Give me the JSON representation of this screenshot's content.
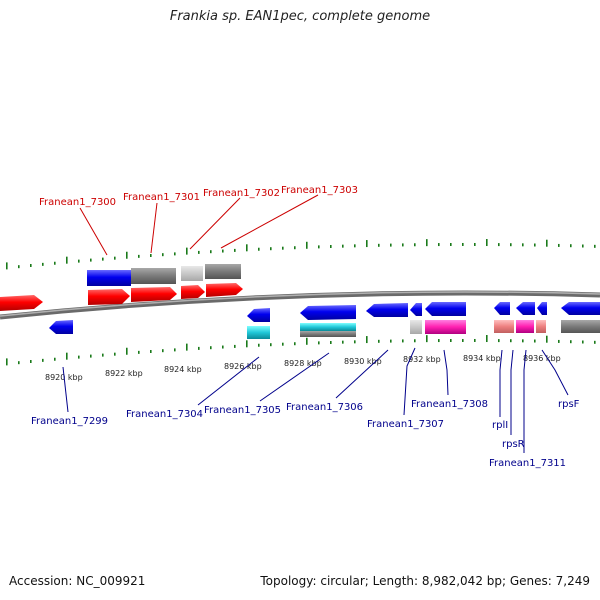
{
  "title": "Frankia sp. EAN1pec, complete genome",
  "footer": {
    "accession": "Accession: NC_009921",
    "topology": "Topology: circular; Length: 8,982,042 bp; Genes: 7,249"
  },
  "colors": {
    "forward_label": "#cc0000",
    "reverse_label": "#00008b",
    "ticks": "#1a7a1a",
    "backbone": "#808080"
  },
  "ruler": {
    "labels": [
      "8920 kbp",
      "8922 kbp",
      "8924 kbp",
      "8926 kbp",
      "8928 kbp",
      "8930 kbp",
      "8932 kbp",
      "8934 kbp",
      "8936 kbp"
    ]
  },
  "forward_labels": [
    "Franean1_7300",
    "Franean1_7301",
    "Franean1_7302",
    "Franean1_7303"
  ],
  "reverse_labels": [
    "Franean1_7299",
    "Franean1_7304",
    "Franean1_7305",
    "Franean1_7306",
    "Franean1_7307",
    "Franean1_7308",
    "rplI",
    "rpsR",
    "Franean1_7311",
    "rpsF"
  ]
}
